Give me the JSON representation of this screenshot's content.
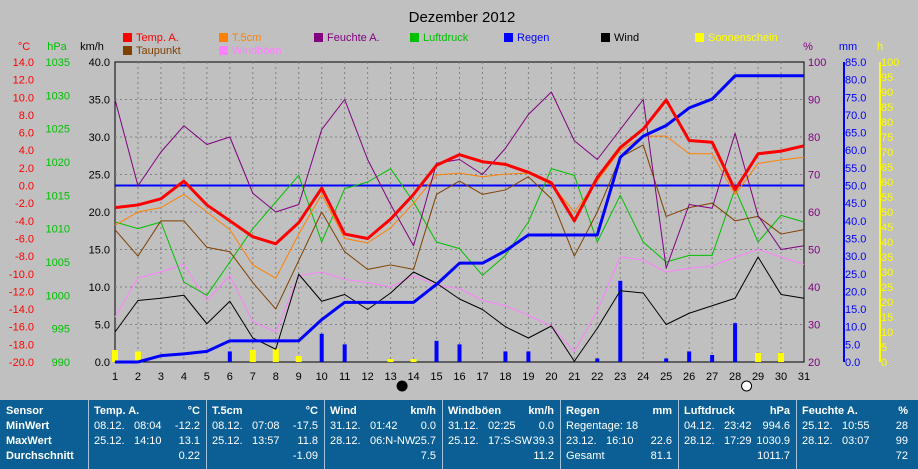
{
  "chart_data": {
    "type": "line",
    "title": "Dezember 2012",
    "x": [
      1,
      2,
      3,
      4,
      5,
      6,
      7,
      8,
      9,
      10,
      11,
      12,
      13,
      14,
      15,
      16,
      17,
      18,
      19,
      20,
      21,
      22,
      23,
      24,
      25,
      26,
      27,
      28,
      29,
      30,
      31
    ],
    "x_ticks": [
      "1",
      "2",
      "3",
      "4",
      "5",
      "6",
      "7",
      "8",
      "9",
      "10",
      "11",
      "12",
      "13",
      "14",
      "15",
      "16",
      "17",
      "18",
      "19",
      "20",
      "21",
      "22",
      "23",
      "24",
      "25",
      "26",
      "27",
      "28",
      "29",
      "30",
      "31"
    ],
    "axes": {
      "temp": {
        "label": "°C",
        "color": "#ff0000",
        "min": -20,
        "max": 14,
        "ticks": [
          "14.0",
          "12.0",
          "10.0",
          "8.0",
          "6.0",
          "4.0",
          "2.0",
          "0.0",
          "-2.0",
          "-4.0",
          "-6.0",
          "-8.0",
          "-10.0",
          "-12.0",
          "-14.0",
          "-16.0",
          "-18.0",
          "-20.0"
        ]
      },
      "pressure": {
        "label": "hPa",
        "color": "#00c000",
        "min": 990,
        "max": 1035,
        "ticks": [
          "1035",
          "1030",
          "1025",
          "1020",
          "1015",
          "1010",
          "1005",
          "1000",
          "995",
          "990"
        ]
      },
      "wind": {
        "label": "km/h",
        "color": "#000000",
        "min": 0,
        "max": 40,
        "ticks": [
          "40.0",
          "35.0",
          "30.0",
          "25.0",
          "20.0",
          "15.0",
          "10.0",
          "5.0",
          "0.0"
        ]
      },
      "humidity": {
        "label": "%",
        "color": "#800080",
        "min": 20,
        "max": 100,
        "ticks": [
          "100",
          "90",
          "80",
          "70",
          "60",
          "50",
          "40",
          "30",
          "20"
        ]
      },
      "rain": {
        "label": "mm",
        "color": "#0000ff",
        "min": 0,
        "max": 85,
        "ticks": [
          "85.0",
          "80.0",
          "75.0",
          "70.0",
          "65.0",
          "60.0",
          "55.0",
          "50.0",
          "45.0",
          "40.0",
          "35.0",
          "30.0",
          "25.0",
          "20.0",
          "15.0",
          "10.0",
          "5.0",
          "0.0"
        ]
      },
      "sun": {
        "label": "h",
        "color": "#ffff00",
        "min": 0,
        "max": 100,
        "ticks": [
          "100",
          "95",
          "90",
          "85",
          "80",
          "75",
          "70",
          "65",
          "60",
          "55",
          "50",
          "45",
          "40",
          "35",
          "30",
          "25",
          "20",
          "15",
          "10",
          "5",
          "0"
        ]
      }
    },
    "series": [
      {
        "name": "Temp. A.",
        "color": "#ff0000",
        "axis": "temp",
        "values": [
          -2.5,
          -2.2,
          -1.5,
          0.5,
          -2.2,
          -4,
          -5.8,
          -6.6,
          -4.2,
          -0.3,
          -5.5,
          -6,
          -3.8,
          -1,
          2.3,
          3.5,
          2.7,
          2.4,
          1.5,
          0.3,
          -4,
          0.9,
          4.3,
          6.4,
          9.7,
          5.1,
          4.9,
          -0.5,
          3.6,
          3.9,
          4.5
        ]
      },
      {
        "name": "T.5cm",
        "color": "#ff8000",
        "axis": "temp",
        "values": [
          -4.5,
          -3,
          -2.5,
          -1,
          -3,
          -5,
          -9,
          -10.5,
          -5.5,
          -1,
          -6,
          -6.5,
          -4.8,
          -2,
          1.2,
          1.4,
          1,
          1.3,
          1.4,
          0.1,
          -3,
          0.5,
          4,
          5.6,
          5.6,
          3.6,
          3.6,
          -1,
          2.5,
          2.9,
          3.2
        ]
      },
      {
        "name": "Feuchte A.",
        "color": "#800080",
        "axis": "humidity",
        "values": [
          90,
          67,
          76,
          83,
          78,
          80,
          65,
          60,
          62,
          82,
          90,
          74,
          62,
          51,
          73,
          74,
          70,
          77,
          86,
          92,
          79,
          74,
          82,
          90,
          45,
          62,
          61,
          81,
          59,
          50,
          51
        ]
      },
      {
        "name": "Taupunkt",
        "color": "#804000",
        "axis": "temp",
        "values": [
          -5,
          -8,
          -4,
          -4,
          -7,
          -7.5,
          -11,
          -14,
          -8.5,
          -3,
          -7.5,
          -9.5,
          -9,
          -9.5,
          -1,
          0.5,
          -1,
          -0.5,
          1,
          -1.5,
          -8,
          -3,
          3.2,
          4.6,
          -3.5,
          -2.5,
          -2,
          -4,
          -3.5,
          -5.5,
          -5
        ]
      },
      {
        "name": "Luftdruck",
        "color": "#00c000",
        "axis": "pressure",
        "values": [
          1011,
          1010,
          1011,
          1002,
          1000,
          1005,
          1010,
          1014,
          1018,
          1008,
          1016,
          1017,
          1019,
          1014,
          1008,
          1007,
          1003,
          1006,
          1011,
          1019,
          1018,
          1008,
          1015,
          1008,
          1005,
          1006,
          1006,
          1016,
          1008,
          1012,
          1011
        ]
      },
      {
        "name": "Regen",
        "color": "#0000ff",
        "axis": "rain",
        "values": [
          0,
          0,
          1.8,
          2.3,
          3,
          6,
          6,
          6,
          6,
          12,
          16.9,
          16.9,
          16.9,
          16.9,
          22,
          28,
          28,
          31.5,
          36,
          36,
          36,
          36,
          58,
          64,
          67,
          72,
          74.5,
          81.1,
          81.1,
          81.1,
          81.1
        ]
      },
      {
        "name": "Wind",
        "color": "#000000",
        "axis": "wind",
        "values": [
          4,
          8.2,
          8.5,
          8.9,
          5.1,
          8.1,
          3.2,
          1.7,
          11.7,
          8.1,
          9,
          7,
          9.2,
          12,
          10.5,
          8.4,
          7,
          4.7,
          3.2,
          4.8,
          0.1,
          4.5,
          9.5,
          9.2,
          5,
          6.5,
          7.5,
          8.5,
          14,
          9,
          8.5
        ]
      },
      {
        "name": "Windböen",
        "color": "#ff80ff",
        "axis": "wind",
        "values": [
          6,
          11.2,
          12,
          13,
          8.2,
          11.5,
          5.4,
          4,
          11.5,
          12,
          11,
          10.6,
          10,
          11.5,
          10.2,
          9.8,
          8.2,
          7.5,
          6.2,
          4.8,
          1.4,
          6.8,
          14,
          13.6,
          12,
          12.5,
          12.8,
          14,
          15,
          14,
          13
        ]
      },
      {
        "name": "Sonnenschein",
        "color": "#ffff00",
        "axis": "sun",
        "values": [
          4,
          3.5,
          0,
          0,
          0,
          0,
          4,
          4.5,
          2,
          0,
          0,
          0,
          1,
          1,
          0,
          0,
          0,
          0,
          0,
          0,
          0,
          0,
          0,
          0,
          0,
          0,
          0,
          0,
          3,
          3,
          0
        ]
      }
    ],
    "rain_daily": {
      "name": "Regen Tageswert",
      "color": "#0000ff",
      "axis": "rain",
      "values": [
        0,
        0,
        0,
        0,
        0,
        3,
        0,
        3,
        0,
        8,
        5,
        0,
        0,
        0,
        6,
        5,
        0,
        3,
        3,
        0,
        0,
        1,
        23,
        0,
        1,
        3,
        2,
        11,
        0,
        0,
        0
      ]
    },
    "reference_line": {
      "axis": "temp",
      "value": 0,
      "color": "#0000ff"
    },
    "moon_markers": [
      {
        "x": 13.5,
        "phase": "new"
      },
      {
        "x": 28.5,
        "phase": "full"
      }
    ],
    "grid": true
  },
  "legend": [
    {
      "label": "Temp. A.",
      "color": "#ff0000"
    },
    {
      "label": "T.5cm",
      "color": "#ff8000"
    },
    {
      "label": "Feuchte A.",
      "color": "#800080"
    },
    {
      "label": "Luftdruck",
      "color": "#00c000"
    },
    {
      "label": "Regen",
      "color": "#0000ff"
    },
    {
      "label": "Wind",
      "color": "#000000"
    },
    {
      "label": "Sonnenschein",
      "color": "#ffff00"
    },
    {
      "label": "Taupunkt",
      "color": "#804000"
    },
    {
      "label": "Windböen",
      "color": "#ff80ff"
    }
  ],
  "stats": {
    "sensor": {
      "title": "Sensor",
      "min_label": "MinWert",
      "max_label": "MaxWert",
      "avg_label": "Durchschnitt"
    },
    "temp": {
      "title": "Temp. A.",
      "unit": "°C",
      "min_date": "08.12.",
      "min_time": "08:04",
      "min_val": "-12.2",
      "max_date": "25.12.",
      "max_time": "14:10",
      "max_val": "13.1",
      "avg": "0.22"
    },
    "t5cm": {
      "title": "T.5cm",
      "unit": "°C",
      "min_date": "08.12.",
      "min_time": "07:08",
      "min_val": "-17.5",
      "max_date": "25.12.",
      "max_time": "13:57",
      "max_val": "11.8",
      "avg": "-1.09"
    },
    "wind": {
      "title": "Wind",
      "unit": "km/h",
      "min_date": "31.12.",
      "min_time": "01:42",
      "min_val": "0.0",
      "max_date": "28.12.",
      "max_time": "06:N-NW",
      "max_val": "25.7",
      "avg": "7.5"
    },
    "gust": {
      "title": "Windböen",
      "unit": "km/h",
      "min_date": "31.12.",
      "min_time": "02:25",
      "min_val": "0.0",
      "max_date": "25.12.",
      "max_time": "17:S-SW",
      "max_val": "39.3",
      "avg": "11.2"
    },
    "rain": {
      "title": "Regen",
      "unit": "mm",
      "row1": "Regentage: 18",
      "max_date": "23.12.",
      "max_time": "16:10",
      "max_val": "22.6",
      "total_label": "Gesamt",
      "total": "81.1"
    },
    "pressure": {
      "title": "Luftdruck",
      "unit": "hPa",
      "min_date": "04.12.",
      "min_time": "23:42",
      "min_val": "994.6",
      "max_date": "28.12.",
      "max_time": "17:29",
      "max_val": "1030.9",
      "avg": "1011.7"
    },
    "humidity": {
      "title": "Feuchte A.",
      "unit": "%",
      "min_date": "25.12.",
      "min_time": "10:55",
      "min_val": "28",
      "max_date": "28.12.",
      "max_time": "03:07",
      "max_val": "99",
      "avg": "72"
    }
  }
}
